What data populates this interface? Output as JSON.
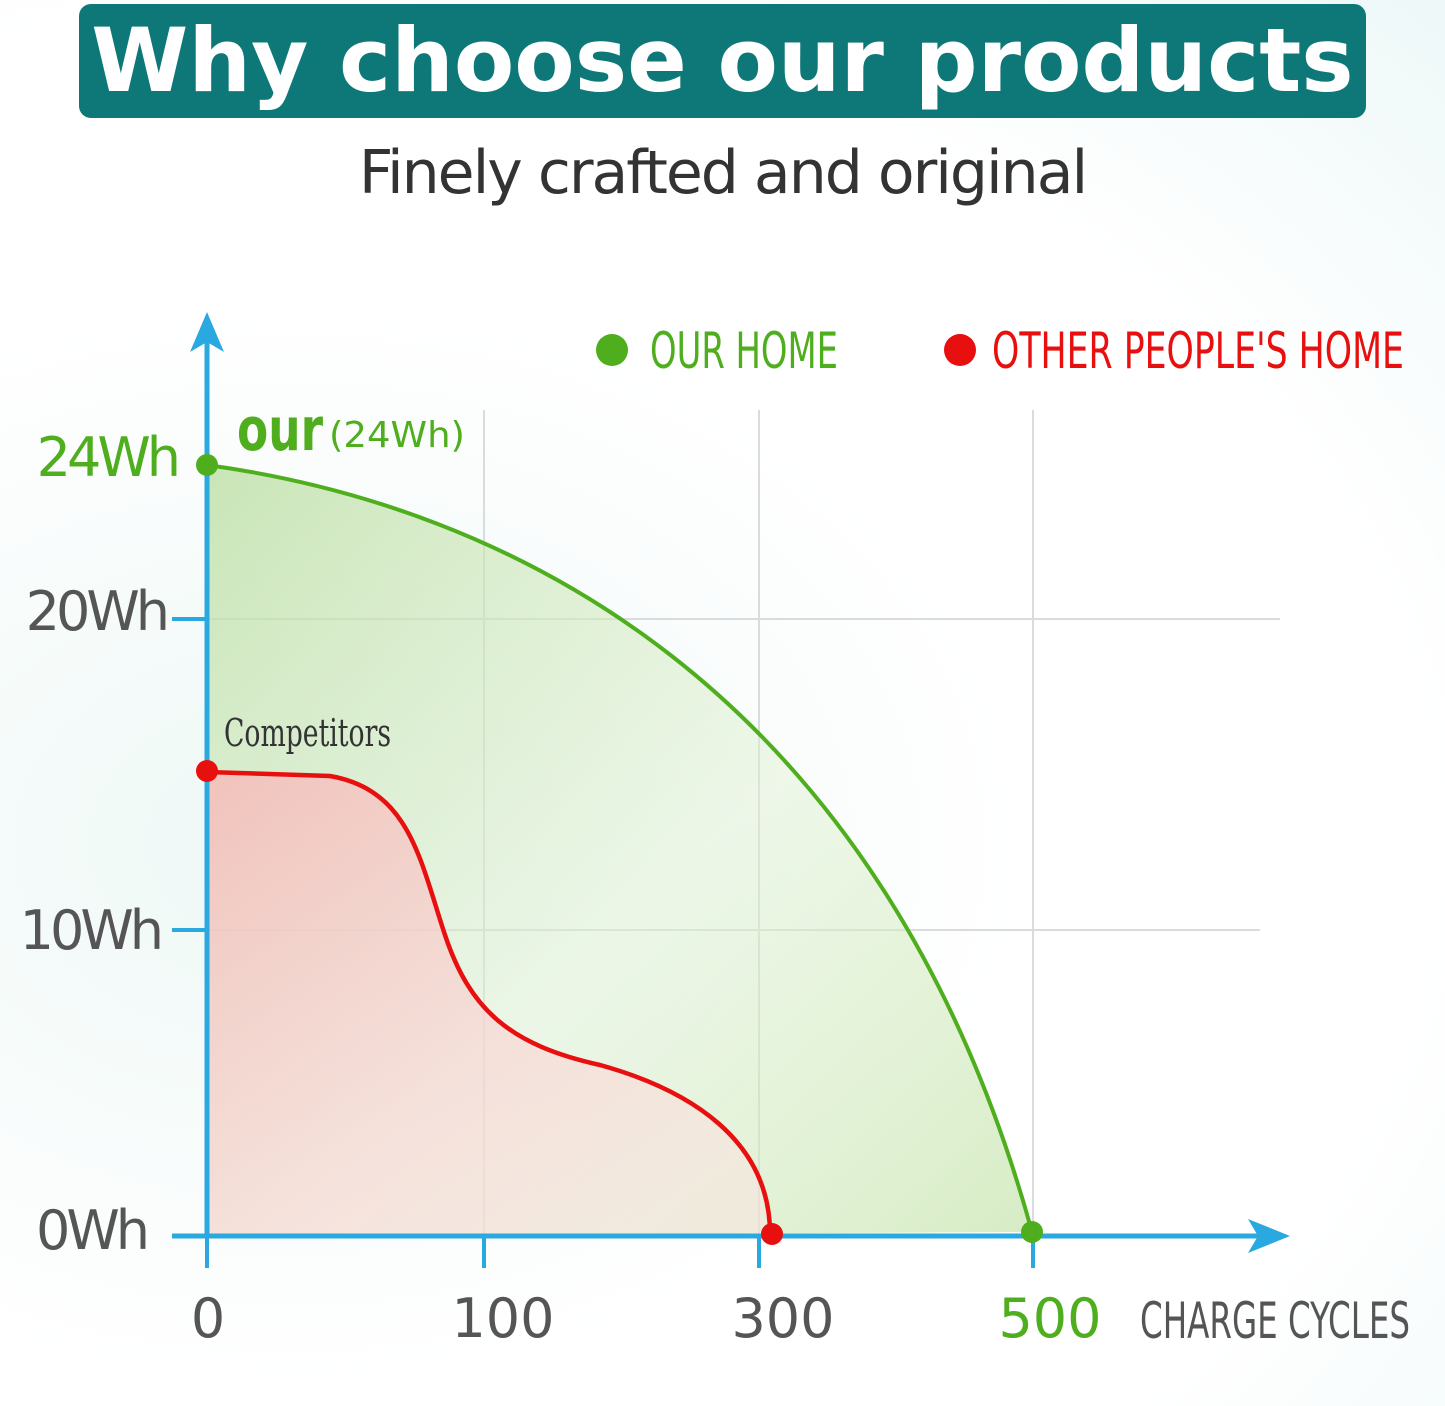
{
  "header": {
    "title": "Why choose our products",
    "subtitle": "Finely crafted and original"
  },
  "colors": {
    "banner": "#0e7878",
    "axis": "#29a9e0",
    "ours": "#4fae1d",
    "competitor": "#e80f0f",
    "grid": "#d9dcdc",
    "tick_text": "#555555"
  },
  "legend": {
    "ours_label": "OUR HOME",
    "competitor_label": "OTHER PEOPLE'S HOME"
  },
  "annotations": {
    "ours_word": "our",
    "ours_value": "(24Wh)",
    "competitor": "Competitors"
  },
  "chart_data": {
    "type": "area",
    "xlabel": "CHARGE CYCLES",
    "ylabel": "",
    "x_ticks": [
      "0",
      "100",
      "300",
      "500"
    ],
    "y_ticks": [
      "0Wh",
      "10Wh",
      "20Wh",
      "24Wh"
    ],
    "series": [
      {
        "name": "OUR HOME",
        "color": "#4fae1d",
        "x": [
          0,
          100,
          200,
          300,
          400,
          500
        ],
        "y": [
          24,
          22.4,
          19,
          15,
          9,
          0
        ]
      },
      {
        "name": "OTHER PEOPLE'S HOME",
        "color": "#e80f0f",
        "x": [
          0,
          50,
          75,
          100,
          150,
          200,
          280,
          300
        ],
        "y": [
          15,
          14.8,
          11,
          7,
          5.5,
          4.6,
          2.5,
          0
        ]
      }
    ]
  }
}
